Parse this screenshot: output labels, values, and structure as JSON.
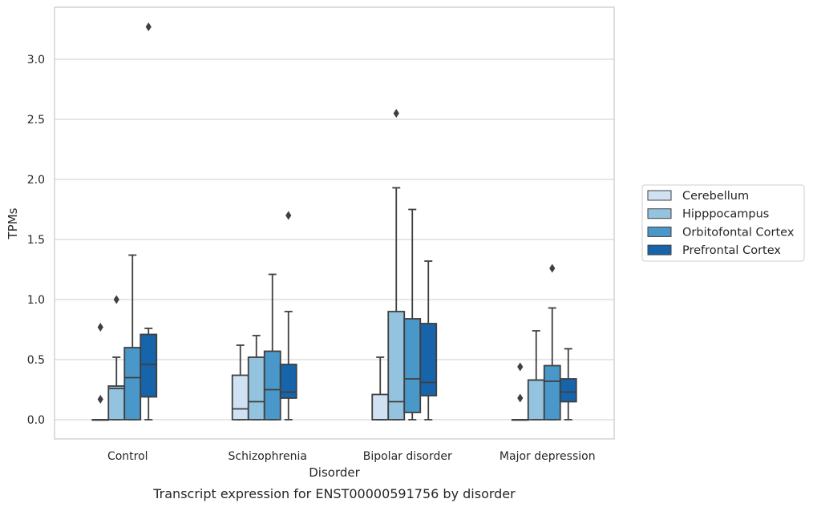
{
  "chart_data": {
    "type": "box",
    "caption": "Transcript expression for ENST00000591756 by disorder",
    "xlabel": "Disorder",
    "ylabel": "TPMs",
    "ylim": [
      -0.16,
      3.44
    ],
    "yticks": [
      "0.0",
      "0.5",
      "1.0",
      "1.5",
      "2.0",
      "2.5",
      "3.0"
    ],
    "grid": "horizontal",
    "legend_position": "right",
    "categories": [
      "Control",
      "Schizophrenia",
      "Bipolar disorder",
      "Major depression"
    ],
    "series": [
      {
        "name": "Cerebellum",
        "color": "#cfe1f2",
        "boxes": [
          {
            "whislo": 0,
            "q1": 0,
            "med": 0,
            "q3": 0,
            "whishi": 0,
            "fliers": [
              0.77,
              0.17
            ]
          },
          {
            "whislo": 0,
            "q1": 0,
            "med": 0.09,
            "q3": 0.37,
            "whishi": 0.62,
            "fliers": []
          },
          {
            "whislo": 0,
            "q1": 0,
            "med": 0,
            "q3": 0.21,
            "whishi": 0.52,
            "fliers": []
          },
          {
            "whislo": 0,
            "q1": 0,
            "med": 0,
            "q3": 0,
            "whishi": 0,
            "fliers": [
              0.44,
              0.18
            ]
          }
        ]
      },
      {
        "name": "Hipppocampus",
        "color": "#93c3df",
        "boxes": [
          {
            "whislo": 0,
            "q1": 0,
            "med": 0.26,
            "q3": 0.28,
            "whishi": 0.52,
            "fliers": [
              1.0
            ]
          },
          {
            "whislo": 0,
            "q1": 0,
            "med": 0.15,
            "q3": 0.52,
            "whishi": 0.7,
            "fliers": []
          },
          {
            "whislo": 0,
            "q1": 0,
            "med": 0.15,
            "q3": 0.9,
            "whishi": 1.93,
            "fliers": [
              2.55
            ]
          },
          {
            "whislo": 0,
            "q1": 0,
            "med": 0.33,
            "q3": 0.33,
            "whishi": 0.74,
            "fliers": []
          }
        ]
      },
      {
        "name": "Orbitofontal Cortex",
        "color": "#4a98c9",
        "boxes": [
          {
            "whislo": 0,
            "q1": 0,
            "med": 0.35,
            "q3": 0.6,
            "whishi": 1.37,
            "fliers": []
          },
          {
            "whislo": 0,
            "q1": 0,
            "med": 0.25,
            "q3": 0.57,
            "whishi": 1.21,
            "fliers": []
          },
          {
            "whislo": 0,
            "q1": 0.06,
            "med": 0.34,
            "q3": 0.84,
            "whishi": 1.75,
            "fliers": []
          },
          {
            "whislo": 0,
            "q1": 0,
            "med": 0.32,
            "q3": 0.45,
            "whishi": 0.93,
            "fliers": [
              1.26
            ]
          }
        ]
      },
      {
        "name": "Prefrontal Cortex",
        "color": "#1764ab",
        "boxes": [
          {
            "whislo": 0,
            "q1": 0.19,
            "med": 0.46,
            "q3": 0.71,
            "whishi": 0.76,
            "fliers": [
              3.27
            ]
          },
          {
            "whislo": 0,
            "q1": 0.18,
            "med": 0.23,
            "q3": 0.46,
            "whishi": 0.9,
            "fliers": [
              1.7
            ]
          },
          {
            "whislo": 0,
            "q1": 0.2,
            "med": 0.31,
            "q3": 0.8,
            "whishi": 1.32,
            "fliers": []
          },
          {
            "whislo": 0,
            "q1": 0.15,
            "med": 0.23,
            "q3": 0.34,
            "whishi": 0.59,
            "fliers": []
          }
        ]
      }
    ]
  }
}
